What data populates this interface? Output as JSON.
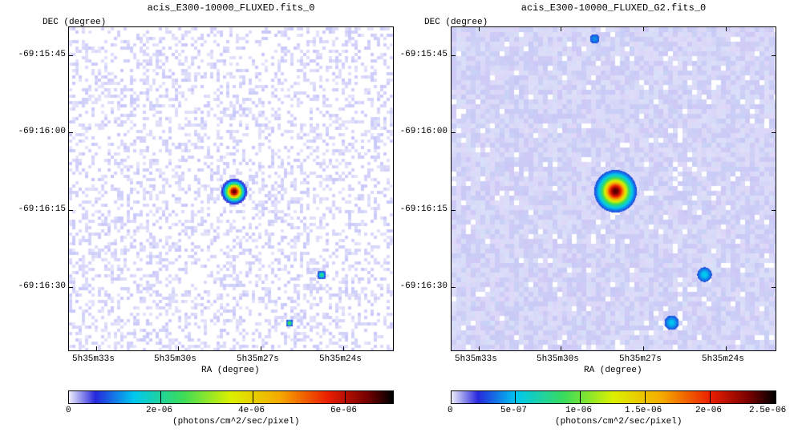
{
  "panels": [
    {
      "title": "acis_E300-10000_FLUXED.fits_0",
      "ylabel": "DEC (degree)",
      "xlabel": "RA (degree)",
      "yticks": [
        "-69:15:45",
        "-69:16:00",
        "-69:16:15",
        "-69:16:30"
      ],
      "xticks": [
        "5h35m33s",
        "5h35m30s",
        "5h35m27s",
        "5h35m24s"
      ],
      "colorbar_ticks": [
        "0",
        "2e-06",
        "4e-06",
        "6e-06"
      ],
      "colorbar_label": "(photons/cm^2/sec/pixel)",
      "style": "noisy"
    },
    {
      "title": "acis_E300-10000_FLUXED_G2.fits_0",
      "ylabel": "DEC (degree)",
      "xlabel": "RA (degree)",
      "yticks": [
        "-69:15:45",
        "-69:16:00",
        "-69:16:15",
        "-69:16:30"
      ],
      "xticks": [
        "5h35m33s",
        "5h35m30s",
        "5h35m27s",
        "5h35m24s"
      ],
      "colorbar_ticks": [
        "0",
        "5e-07",
        "1e-06",
        "1.5e-06",
        "2e-06",
        "2.5e-06"
      ],
      "colorbar_label": "(photons/cm^2/sec/pixel)",
      "style": "smooth"
    }
  ],
  "colors": {
    "background": "#ffffff",
    "noise": "#b8b8f0",
    "smooth_bg": "#dcdcf8"
  }
}
